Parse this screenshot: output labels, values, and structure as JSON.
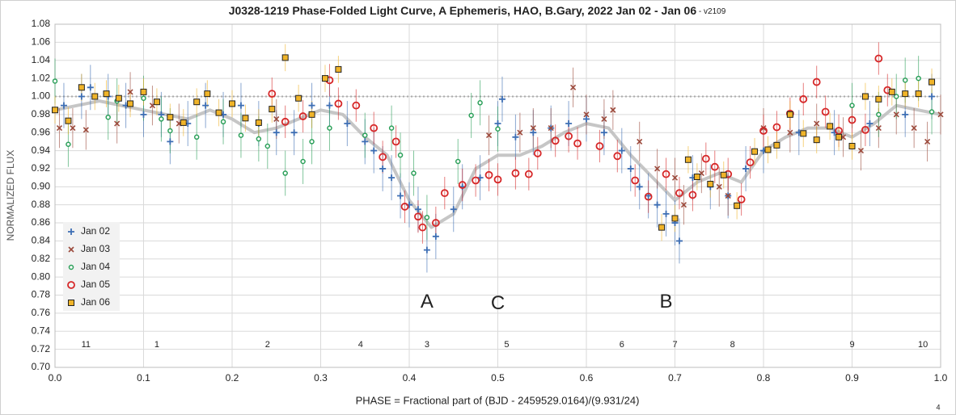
{
  "chart_data": {
    "type": "scatter",
    "title": "J0328-1219 Phase-Folded Light Curve, A Ephemeris, HAO, B.Gary, 2022 Jan 02 - Jan 06",
    "subtitle": " - v2109",
    "x_label": "PHASE = Fractional part of (BJD - 2459529.0164)/(9.931/24)",
    "y_label": "NORMALIZED FLUX",
    "page_note": "4",
    "xlim": [
      0,
      1
    ],
    "ylim": [
      0.7,
      1.08
    ],
    "xticks": [
      {
        "value": 0,
        "label": "0.0"
      },
      0.1,
      0.2,
      0.3,
      0.4,
      0.5,
      0.6,
      0.7,
      0.8,
      0.9,
      {
        "value": 1,
        "label": "1.0"
      }
    ],
    "yticks": [
      {
        "value": 0.7,
        "label": "0.70"
      },
      0.72,
      0.74,
      0.76,
      0.78,
      {
        "value": 0.8,
        "label": "0.80"
      },
      0.82,
      0.84,
      0.86,
      0.88,
      {
        "value": 0.9,
        "label": "0.90"
      },
      0.92,
      0.94,
      0.96,
      0.98,
      {
        "value": 1,
        "label": "1.00"
      },
      1.02,
      1.04,
      1.06,
      1.08
    ],
    "grid": true,
    "reference_line": 1.0,
    "legend_position": "left",
    "series": [
      {
        "name": "Jan 02",
        "color": "#3d6eb4",
        "marker": "plus",
        "error": 0.025,
        "x": [
          0.01,
          0.03,
          0.04,
          0.06,
          0.08,
          0.1,
          0.12,
          0.13,
          0.15,
          0.17,
          0.19,
          0.21,
          0.23,
          0.25,
          0.27,
          0.29,
          0.31,
          0.33,
          0.35,
          0.36,
          0.37,
          0.38,
          0.39,
          0.4,
          0.41,
          0.42,
          0.43,
          0.45,
          0.46,
          0.48,
          0.5,
          0.505,
          0.52,
          0.54,
          0.56,
          0.58,
          0.6,
          0.62,
          0.64,
          0.65,
          0.66,
          0.67,
          0.68,
          0.69,
          0.7,
          0.705,
          0.72,
          0.74,
          0.76,
          0.78,
          0.8,
          0.84,
          0.88,
          0.92,
          0.96,
          0.99
        ],
        "values": [
          0.99,
          1.0,
          1.01,
          1.0,
          0.99,
          0.98,
          0.98,
          0.95,
          0.97,
          0.99,
          0.98,
          0.99,
          0.97,
          0.96,
          0.96,
          0.99,
          0.99,
          0.97,
          0.95,
          0.94,
          0.92,
          0.91,
          0.89,
          0.88,
          0.875,
          0.83,
          0.845,
          0.875,
          0.9,
          0.91,
          0.97,
          0.997,
          0.955,
          0.96,
          0.965,
          0.97,
          0.975,
          0.96,
          0.94,
          0.92,
          0.9,
          0.89,
          0.88,
          0.87,
          0.86,
          0.84,
          0.91,
          0.9,
          0.89,
          0.92,
          0.94,
          0.96,
          0.96,
          0.97,
          0.98,
          1.0
        ]
      },
      {
        "name": "Jan 03",
        "color": "#9c4a3c",
        "marker": "x",
        "error": 0.022,
        "x": [
          0.005,
          0.02,
          0.035,
          0.07,
          0.085,
          0.11,
          0.14,
          0.25,
          0.49,
          0.525,
          0.54,
          0.56,
          0.585,
          0.6,
          0.62,
          0.63,
          0.66,
          0.68,
          0.7,
          0.71,
          0.73,
          0.75,
          0.76,
          0.8,
          0.83,
          0.86,
          0.89,
          0.91,
          0.93,
          0.95,
          0.97,
          0.985,
          1.0
        ],
        "values": [
          0.965,
          0.965,
          0.963,
          0.97,
          1.005,
          0.99,
          0.97,
          0.975,
          0.957,
          0.96,
          0.965,
          0.965,
          1.01,
          0.98,
          0.975,
          0.985,
          0.95,
          0.92,
          0.91,
          0.88,
          0.915,
          0.9,
          0.89,
          0.965,
          0.96,
          0.97,
          0.955,
          0.94,
          0.965,
          0.98,
          0.965,
          0.95,
          0.98
        ]
      },
      {
        "name": "Jan 04",
        "color": "#2ca05a",
        "marker": "circle",
        "error": 0.025,
        "x": [
          0.0,
          0.015,
          0.06,
          0.07,
          0.1,
          0.12,
          0.13,
          0.16,
          0.19,
          0.21,
          0.23,
          0.24,
          0.26,
          0.28,
          0.29,
          0.31,
          0.35,
          0.38,
          0.39,
          0.405,
          0.42,
          0.455,
          0.47,
          0.48,
          0.5,
          0.9,
          0.93,
          0.95,
          0.96,
          0.975,
          0.99
        ],
        "values": [
          1.017,
          0.947,
          0.977,
          0.995,
          0.998,
          0.975,
          0.962,
          0.955,
          0.972,
          0.957,
          0.953,
          0.945,
          0.915,
          0.928,
          0.95,
          0.965,
          0.957,
          0.965,
          0.935,
          0.915,
          0.866,
          0.928,
          0.979,
          0.993,
          0.964,
          0.99,
          0.98,
          1.0,
          1.018,
          1.02,
          0.983
        ]
      },
      {
        "name": "Jan 05",
        "color": "#d62728",
        "marker": "ring",
        "error": 0.018,
        "x": [
          0.245,
          0.26,
          0.28,
          0.31,
          0.32,
          0.34,
          0.36,
          0.37,
          0.385,
          0.395,
          0.41,
          0.415,
          0.43,
          0.44,
          0.46,
          0.475,
          0.49,
          0.5,
          0.52,
          0.535,
          0.545,
          0.565,
          0.58,
          0.59,
          0.615,
          0.635,
          0.655,
          0.67,
          0.69,
          0.705,
          0.72,
          0.735,
          0.745,
          0.76,
          0.775,
          0.785,
          0.8,
          0.815,
          0.83,
          0.845,
          0.86,
          0.87,
          0.885,
          0.9,
          0.915,
          0.93,
          0.94
        ],
        "values": [
          1.003,
          0.972,
          0.978,
          1.018,
          0.992,
          0.99,
          0.965,
          0.933,
          0.95,
          0.878,
          0.867,
          0.855,
          0.86,
          0.893,
          0.902,
          0.907,
          0.913,
          0.908,
          0.915,
          0.914,
          0.937,
          0.951,
          0.956,
          0.948,
          0.945,
          0.934,
          0.907,
          0.889,
          0.914,
          0.893,
          0.891,
          0.931,
          0.922,
          0.914,
          0.886,
          0.927,
          0.962,
          0.966,
          0.981,
          0.997,
          1.016,
          0.983,
          0.962,
          0.974,
          0.963,
          1.042,
          1.007
        ]
      },
      {
        "name": "Jan 06",
        "color": "#f0b429",
        "marker": "square",
        "error": 0.015,
        "x": [
          0.0,
          0.015,
          0.03,
          0.045,
          0.058,
          0.072,
          0.085,
          0.1,
          0.115,
          0.13,
          0.145,
          0.16,
          0.172,
          0.185,
          0.2,
          0.215,
          0.23,
          0.245,
          0.26,
          0.275,
          0.29,
          0.305,
          0.32,
          0.685,
          0.7,
          0.715,
          0.725,
          0.74,
          0.755,
          0.77,
          0.79,
          0.805,
          0.815,
          0.83,
          0.845,
          0.86,
          0.875,
          0.885,
          0.9,
          0.915,
          0.93,
          0.945,
          0.96,
          0.975,
          0.99
        ],
        "values": [
          0.985,
          0.973,
          1.01,
          1.0,
          1.003,
          0.998,
          0.992,
          1.005,
          0.994,
          0.977,
          0.971,
          0.994,
          1.003,
          0.982,
          0.992,
          0.976,
          0.971,
          0.986,
          1.043,
          0.998,
          0.98,
          1.02,
          1.03,
          0.855,
          0.865,
          0.93,
          0.911,
          0.903,
          0.913,
          0.879,
          0.939,
          0.941,
          0.946,
          0.98,
          0.959,
          0.952,
          0.967,
          0.955,
          0.945,
          1.0,
          0.997,
          1.005,
          1.003,
          1.003,
          1.016
        ]
      }
    ],
    "fit": {
      "color": "#bcbcbc",
      "x": [
        0,
        0.025,
        0.05,
        0.075,
        0.1,
        0.125,
        0.15,
        0.175,
        0.2,
        0.225,
        0.25,
        0.275,
        0.3,
        0.325,
        0.35,
        0.375,
        0.4,
        0.425,
        0.45,
        0.475,
        0.5,
        0.525,
        0.55,
        0.575,
        0.6,
        0.625,
        0.65,
        0.675,
        0.7,
        0.725,
        0.75,
        0.775,
        0.8,
        0.825,
        0.85,
        0.875,
        0.9,
        0.925,
        0.95,
        0.975,
        1.0
      ],
      "values": [
        0.985,
        0.99,
        0.995,
        0.99,
        0.985,
        0.98,
        0.975,
        0.985,
        0.975,
        0.96,
        0.965,
        0.975,
        0.985,
        0.98,
        0.955,
        0.935,
        0.885,
        0.855,
        0.87,
        0.92,
        0.935,
        0.935,
        0.945,
        0.96,
        0.97,
        0.965,
        0.935,
        0.91,
        0.885,
        0.905,
        0.915,
        0.905,
        0.94,
        0.955,
        0.965,
        0.965,
        0.955,
        0.97,
        0.99,
        0.985,
        0.98
      ]
    },
    "annotations": [
      {
        "text": "A",
        "x": 0.42,
        "y": 0.772
      },
      {
        "text": "C",
        "x": 0.5,
        "y": 0.77
      },
      {
        "text": "B",
        "x": 0.69,
        "y": 0.772
      }
    ],
    "segments": [
      {
        "text": "11",
        "x": 0.035
      },
      {
        "text": "1",
        "x": 0.115
      },
      {
        "text": "2",
        "x": 0.24
      },
      {
        "text": "4",
        "x": 0.345
      },
      {
        "text": "3",
        "x": 0.42
      },
      {
        "text": "5",
        "x": 0.51
      },
      {
        "text": "6",
        "x": 0.64
      },
      {
        "text": "7",
        "x": 0.7
      },
      {
        "text": "8",
        "x": 0.765
      },
      {
        "text": "9",
        "x": 0.9
      },
      {
        "text": "10",
        "x": 0.98
      }
    ],
    "segment_y": 0.725
  }
}
